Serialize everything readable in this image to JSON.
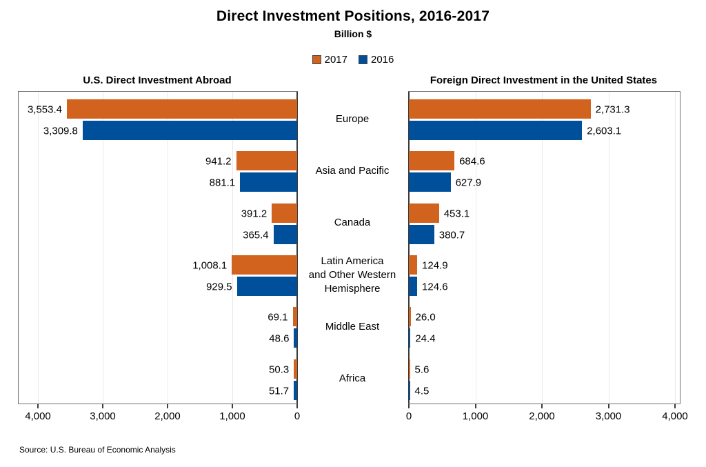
{
  "chart_data": {
    "type": "bar",
    "layout": "mirrored-horizontal",
    "title": "Direct Investment Positions, 2016-2017",
    "subtitle": "Billion $",
    "legend": [
      "2017",
      "2016"
    ],
    "legend_position": "top-center",
    "grid": true,
    "colors": {
      "2017": "#D2631E",
      "2016": "#004F9A"
    },
    "categories": [
      "Europe",
      "Asia and Pacific",
      "Canada",
      "Latin America\nand Other Western\nHemisphere",
      "Middle East",
      "Africa"
    ],
    "axis": {
      "min": 0,
      "max": 4000,
      "interval": 1000,
      "tick_labels": [
        "0",
        "1,000",
        "2,000",
        "3,000",
        "4,000"
      ]
    },
    "panels": [
      {
        "title": "U.S. Direct Investment Abroad",
        "direction": "left",
        "tick_labels_display_order": [
          "4,000",
          "3,000",
          "2,000",
          "1,000",
          "0"
        ],
        "series": [
          {
            "name": "2017",
            "values": [
              3553.4,
              941.2,
              391.2,
              1008.1,
              69.1,
              50.3
            ],
            "labels": [
              "3,553.4",
              "941.2",
              "391.2",
              "1,008.1",
              "69.1",
              "50.3"
            ]
          },
          {
            "name": "2016",
            "values": [
              3309.8,
              881.1,
              365.4,
              929.5,
              48.6,
              51.7
            ],
            "labels": [
              "3,309.8",
              "881.1",
              "365.4",
              "929.5",
              "48.6",
              "51.7"
            ]
          }
        ]
      },
      {
        "title": "Foreign Direct Investment in the United States",
        "direction": "right",
        "tick_labels_display_order": [
          "0",
          "1,000",
          "2,000",
          "3,000",
          "4,000"
        ],
        "series": [
          {
            "name": "2017",
            "values": [
              2731.3,
              684.6,
              453.1,
              124.9,
              26.0,
              5.6
            ],
            "labels": [
              "2,731.3",
              "684.6",
              "453.1",
              "124.9",
              "26.0",
              "5.6"
            ]
          },
          {
            "name": "2016",
            "values": [
              2603.1,
              627.9,
              380.7,
              124.6,
              24.4,
              4.5
            ],
            "labels": [
              "2,603.1",
              "627.9",
              "380.7",
              "124.6",
              "24.4",
              "4.5"
            ]
          }
        ]
      }
    ],
    "source": "Source: U.S. Bureau of Economic Analysis"
  }
}
